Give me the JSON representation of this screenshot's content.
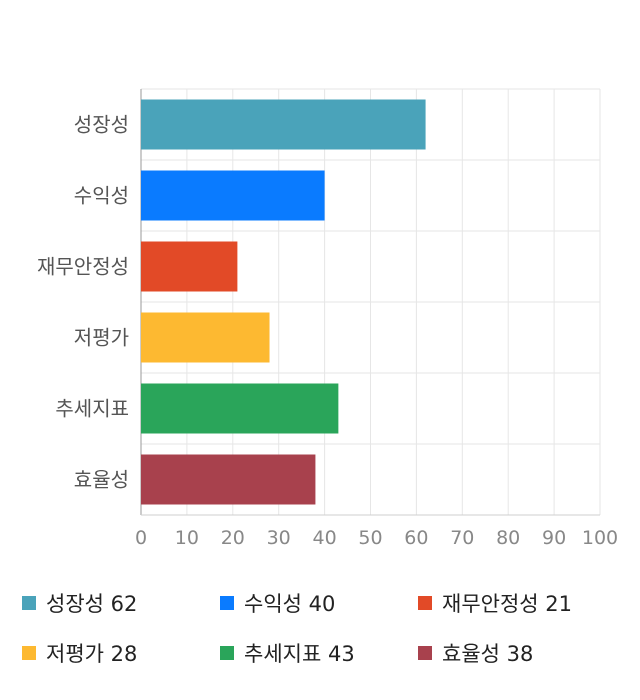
{
  "chart_data": {
    "type": "bar",
    "orientation": "horizontal",
    "categories": [
      "성장성",
      "수익성",
      "재무안정성",
      "저평가",
      "추세지표",
      "효율성"
    ],
    "values": [
      62,
      40,
      21,
      28,
      43,
      38
    ],
    "colors": [
      "#4aa3ba",
      "#0a7bff",
      "#e24a27",
      "#fdb931",
      "#2aa55a",
      "#a8414d"
    ],
    "xlim": [
      0,
      100
    ],
    "xticks": [
      0,
      10,
      20,
      30,
      40,
      50,
      60,
      70,
      80,
      90,
      100
    ],
    "grid": true,
    "legend_position": "bottom",
    "title": "",
    "xlabel": "",
    "ylabel": ""
  },
  "legend": [
    {
      "label": "성장성",
      "value": "62",
      "color": "#4aa3ba"
    },
    {
      "label": "수익성",
      "value": "40",
      "color": "#0a7bff"
    },
    {
      "label": "재무안정성",
      "value": "21",
      "color": "#e24a27"
    },
    {
      "label": "저평가",
      "value": "28",
      "color": "#fdb931"
    },
    {
      "label": "추세지표",
      "value": "43",
      "color": "#2aa55a"
    },
    {
      "label": "효율성",
      "value": "38",
      "color": "#a8414d"
    }
  ]
}
